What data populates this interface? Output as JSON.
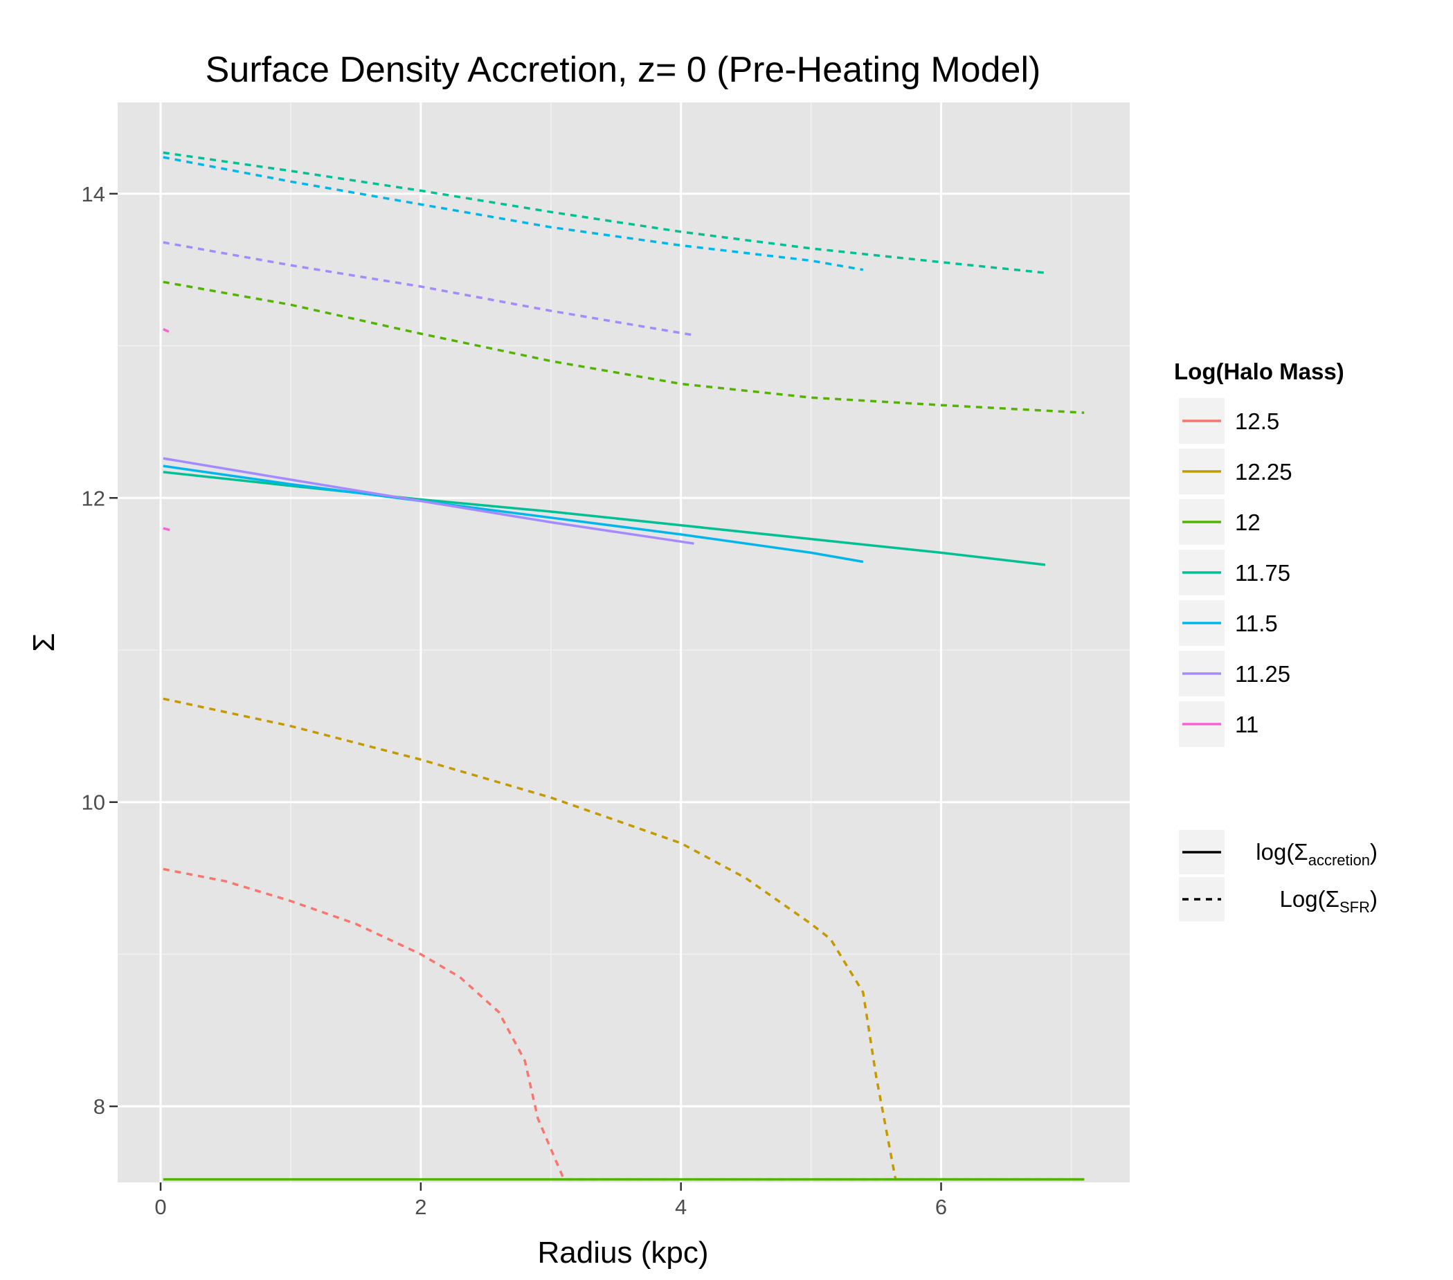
{
  "chart_data": {
    "type": "line",
    "title": "Surface Density Accretion, z= 0 (Pre-Heating Model)",
    "xlabel": "Radius (kpc)",
    "ylabel": "Σ",
    "xlim": [
      -0.33,
      7.45
    ],
    "ylim": [
      7.5,
      14.6
    ],
    "xticks": [
      0,
      2,
      4,
      6
    ],
    "yticks": [
      8,
      10,
      12,
      14
    ],
    "grid": true,
    "legend_color": {
      "title": "Log(Halo Mass)",
      "placement": "right",
      "entries": [
        {
          "label": "12.5",
          "color": "#F8766D"
        },
        {
          "label": "12.25",
          "color": "#C49A00"
        },
        {
          "label": "12",
          "color": "#53B400"
        },
        {
          "label": "11.75",
          "color": "#00C094"
        },
        {
          "label": "11.5",
          "color": "#00B6EB"
        },
        {
          "label": "11.25",
          "color": "#A58AFF"
        },
        {
          "label": "11",
          "color": "#FB61D7"
        }
      ]
    },
    "legend_linetype": {
      "placement": "right",
      "entries": [
        {
          "prefix": "log(Σ",
          "sub": "accretion",
          "suffix": ")",
          "dash": "solid"
        },
        {
          "prefix": "Log(Σ",
          "sub": "SFR",
          "suffix": ")",
          "dash": "dashed"
        }
      ]
    },
    "series": [
      {
        "mass": "12.5",
        "color": "#F8766D",
        "dash": "dashed",
        "x": [
          0.02,
          0.5,
          1.0,
          1.5,
          2.0,
          2.3,
          2.6,
          2.8,
          2.9,
          3.0,
          3.1,
          7.1
        ],
        "y": [
          9.56,
          9.48,
          9.35,
          9.2,
          9.0,
          8.85,
          8.62,
          8.3,
          7.92,
          7.72,
          7.52,
          7.52
        ]
      },
      {
        "mass": "12.25",
        "color": "#C49A00",
        "dash": "dashed",
        "x": [
          0.02,
          1.0,
          2.0,
          3.0,
          4.0,
          4.5,
          5.0,
          5.15,
          5.4,
          5.5,
          5.65,
          7.1
        ],
        "y": [
          10.68,
          10.5,
          10.28,
          10.03,
          9.73,
          9.5,
          9.2,
          9.1,
          8.75,
          8.2,
          7.52,
          7.52
        ]
      },
      {
        "mass": "12",
        "color": "#53B400",
        "dash": "dashed",
        "x": [
          0.02,
          1.0,
          2.0,
          3.0,
          4.0,
          5.0,
          6.0,
          7.1
        ],
        "y": [
          13.42,
          13.27,
          13.08,
          12.9,
          12.75,
          12.66,
          12.61,
          12.56
        ]
      },
      {
        "mass": "12",
        "color": "#53B400",
        "dash": "solid",
        "x": [
          0.02,
          7.1
        ],
        "y": [
          7.52,
          7.52
        ]
      },
      {
        "mass": "11.75",
        "color": "#00C094",
        "dash": "dashed",
        "x": [
          0.02,
          1.0,
          2.0,
          3.0,
          4.0,
          5.0,
          6.0,
          6.8
        ],
        "y": [
          14.27,
          14.15,
          14.02,
          13.88,
          13.75,
          13.64,
          13.55,
          13.48
        ]
      },
      {
        "mass": "11.75",
        "color": "#00C094",
        "dash": "solid",
        "x": [
          0.02,
          1.0,
          2.0,
          3.0,
          4.0,
          5.0,
          6.0,
          6.8
        ],
        "y": [
          12.17,
          12.08,
          11.99,
          11.91,
          11.82,
          11.73,
          11.64,
          11.56
        ]
      },
      {
        "mass": "11.5",
        "color": "#00B6EB",
        "dash": "dashed",
        "x": [
          0.02,
          1.0,
          2.0,
          3.0,
          4.0,
          5.0,
          5.4
        ],
        "y": [
          14.24,
          14.08,
          13.93,
          13.78,
          13.66,
          13.56,
          13.5
        ]
      },
      {
        "mass": "11.5",
        "color": "#00B6EB",
        "dash": "solid",
        "x": [
          0.02,
          1.0,
          2.0,
          3.0,
          4.0,
          5.0,
          5.4
        ],
        "y": [
          12.21,
          12.09,
          11.98,
          11.87,
          11.76,
          11.64,
          11.58
        ]
      },
      {
        "mass": "11.25",
        "color": "#A58AFF",
        "dash": "dashed",
        "x": [
          0.02,
          1.0,
          2.0,
          3.0,
          4.1
        ],
        "y": [
          13.68,
          13.53,
          13.39,
          13.23,
          13.07
        ]
      },
      {
        "mass": "11.25",
        "color": "#A58AFF",
        "dash": "solid",
        "x": [
          0.02,
          1.0,
          2.0,
          3.0,
          4.1
        ],
        "y": [
          12.26,
          12.12,
          11.98,
          11.84,
          11.7
        ]
      },
      {
        "mass": "11",
        "color": "#FB61D7",
        "dash": "dashed",
        "x": [
          0.02,
          0.07
        ],
        "y": [
          13.11,
          13.09
        ]
      },
      {
        "mass": "11",
        "color": "#FB61D7",
        "dash": "solid",
        "x": [
          0.02,
          0.07
        ],
        "y": [
          11.8,
          11.79
        ]
      }
    ]
  }
}
